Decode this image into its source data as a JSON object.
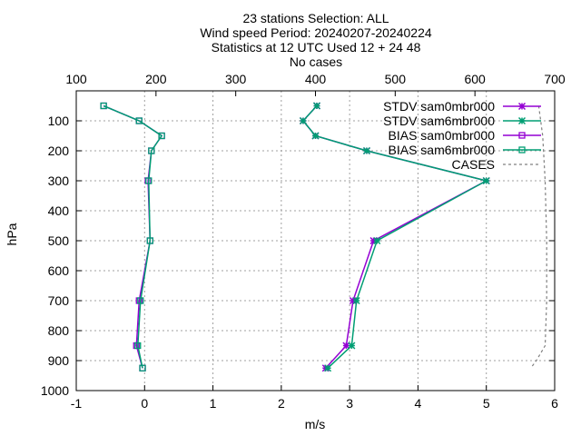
{
  "chart_data": {
    "type": "line",
    "title_lines": [
      "23 stations Selection: ALL",
      "Wind speed  Period: 20240207-20240224",
      "Statistics at 12 UTC  Used 12 + 24 48",
      "No cases"
    ],
    "xlabel": "m/s",
    "ylabel": "hPa",
    "xlim": [
      -1,
      6
    ],
    "ylim": [
      1000,
      0
    ],
    "x_ticks": [
      "-1",
      "0",
      "1",
      "2",
      "3",
      "4",
      "5",
      "6"
    ],
    "y_ticks": [
      "100",
      "200",
      "300",
      "400",
      "500",
      "600",
      "700",
      "800",
      "900",
      "1000"
    ],
    "x2_range": [
      100,
      700
    ],
    "x2_ticks": [
      "100",
      "200",
      "300",
      "400",
      "500",
      "600",
      "700"
    ],
    "grid": true,
    "legend_position": "top-right",
    "series": [
      {
        "name": "STDV sam0mbr000",
        "color": "#9400d3",
        "marker": "x",
        "points": [
          [
            2.52,
            50
          ],
          [
            2.32,
            100
          ],
          [
            2.5,
            150
          ],
          [
            3.25,
            200
          ],
          [
            5.0,
            300
          ],
          [
            3.35,
            500
          ],
          [
            3.05,
            700
          ],
          [
            2.95,
            850
          ],
          [
            2.65,
            925
          ]
        ]
      },
      {
        "name": "STDV sam6mbr000",
        "color": "#009e73",
        "marker": "x",
        "points": [
          [
            2.52,
            50
          ],
          [
            2.32,
            100
          ],
          [
            2.5,
            150
          ],
          [
            3.25,
            200
          ],
          [
            5.0,
            300
          ],
          [
            3.4,
            500
          ],
          [
            3.1,
            700
          ],
          [
            3.03,
            850
          ],
          [
            2.68,
            925
          ]
        ]
      },
      {
        "name": "BIAS sam0mbr000",
        "color": "#9400d3",
        "marker": "square",
        "points": [
          [
            -0.6,
            50
          ],
          [
            -0.08,
            100
          ],
          [
            0.25,
            150
          ],
          [
            0.1,
            200
          ],
          [
            0.05,
            300
          ],
          [
            0.08,
            500
          ],
          [
            -0.08,
            700
          ],
          [
            -0.12,
            850
          ],
          [
            -0.03,
            925
          ]
        ]
      },
      {
        "name": "BIAS sam6mbr000",
        "color": "#009e73",
        "marker": "square",
        "points": [
          [
            -0.6,
            50
          ],
          [
            -0.08,
            100
          ],
          [
            0.25,
            150
          ],
          [
            0.1,
            200
          ],
          [
            0.06,
            300
          ],
          [
            0.08,
            500
          ],
          [
            -0.06,
            700
          ],
          [
            -0.1,
            850
          ],
          [
            -0.03,
            925
          ]
        ]
      },
      {
        "name": "CASES",
        "color": "#808080",
        "marker": "none",
        "dashed": true,
        "axis": "x2",
        "points": [
          [
            680,
            50
          ],
          [
            685,
            150
          ],
          [
            688,
            300
          ],
          [
            690,
            500
          ],
          [
            690,
            700
          ],
          [
            688,
            850
          ],
          [
            677,
            900
          ],
          [
            670,
            925
          ]
        ]
      }
    ]
  }
}
